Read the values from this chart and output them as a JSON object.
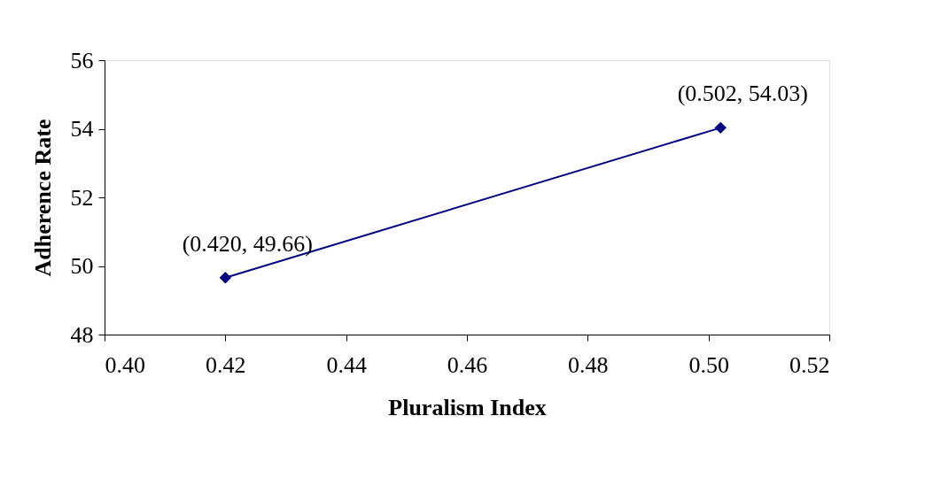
{
  "chart_data": {
    "type": "line",
    "xlabel": "Pluralism Index",
    "ylabel": "Adherence Rate",
    "x": [
      0.42,
      0.502
    ],
    "series": [
      {
        "color": "#000080",
        "values": [
          49.66,
          54.03
        ]
      }
    ],
    "marker": "diamond",
    "line_style": "solid",
    "grid": false,
    "legend": false,
    "xlim": [
      0.4,
      0.52
    ],
    "xticks": [
      {
        "value": 0.4,
        "label": "0.40"
      },
      {
        "value": 0.42,
        "label": "0.42"
      },
      {
        "value": 0.44,
        "label": "0.44"
      },
      {
        "value": 0.46,
        "label": "0.46"
      },
      {
        "value": 0.48,
        "label": "0.48"
      },
      {
        "value": 0.5,
        "label": "0.50"
      },
      {
        "value": 0.52,
        "label": "0.52"
      }
    ],
    "ylim": [
      48,
      56
    ],
    "yticks": [
      48,
      50,
      52,
      54,
      56
    ],
    "annotations": [
      {
        "text": "(0.420, 49.66)",
        "x": 0.42,
        "y": 49.66
      },
      {
        "text": "(0.502, 54.03)",
        "x": 0.502,
        "y": 54.03
      }
    ]
  }
}
